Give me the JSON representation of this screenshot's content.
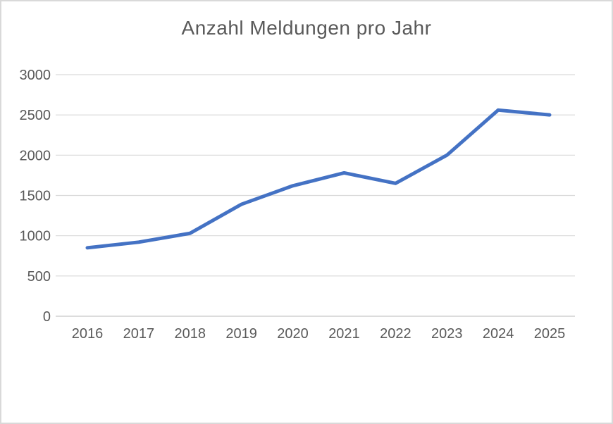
{
  "chart_data": {
    "type": "line",
    "title": "Anzahl Meldungen pro Jahr",
    "categories": [
      "2016",
      "2017",
      "2018",
      "2019",
      "2020",
      "2021",
      "2022",
      "2023",
      "2024",
      "2025"
    ],
    "series": [
      {
        "name": "Anzahl Meldungen",
        "values": [
          850,
          920,
          1030,
          1390,
          1620,
          1780,
          1650,
          2000,
          2560,
          2500
        ]
      }
    ],
    "xlabel": "",
    "ylabel": "",
    "ylim": [
      0,
      3000
    ],
    "yticks": [
      0,
      500,
      1000,
      1500,
      2000,
      2500,
      3000
    ],
    "grid": true,
    "legend_position": "none",
    "colors": {
      "line": "#4472C4",
      "text": "#595959",
      "gridline": "#d9d9d9",
      "axis_line": "#c6c6c6",
      "background": "#ffffff",
      "border": "#d9d9d9"
    }
  }
}
